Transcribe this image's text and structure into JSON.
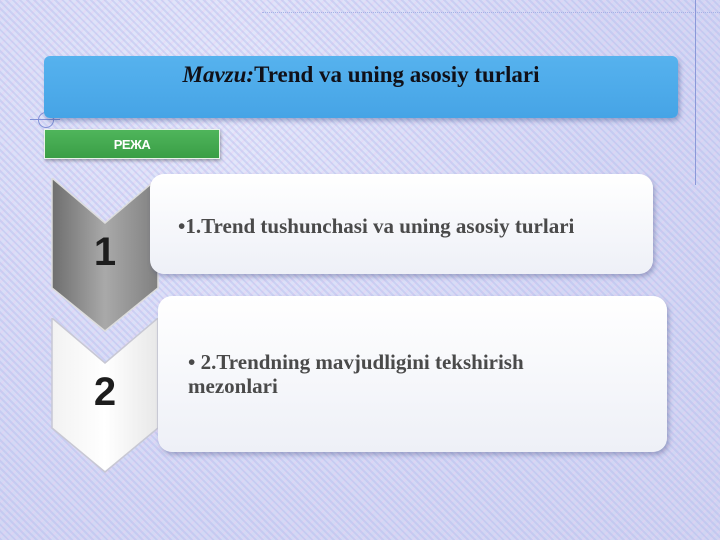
{
  "slide": {
    "title_prefix": "Mavzu:",
    "title_main": "Trend va uning asosiy turlari",
    "section_label": "РЕЖА"
  },
  "plan": {
    "items": [
      {
        "number": "1",
        "text": "•1.Trend tushunchasi va uning asosiy turlari",
        "chevron_color": "#8e8e8e"
      },
      {
        "number": "2",
        "text_line1": "• 2.Trendning mavjudligini tekshirish",
        "text_line2": "mezonlari",
        "chevron_color": "#ffffff"
      }
    ]
  },
  "colors": {
    "title_bar": "#4aa8e8",
    "section_tag": "#44aa50",
    "background": "#d7dcf6"
  }
}
